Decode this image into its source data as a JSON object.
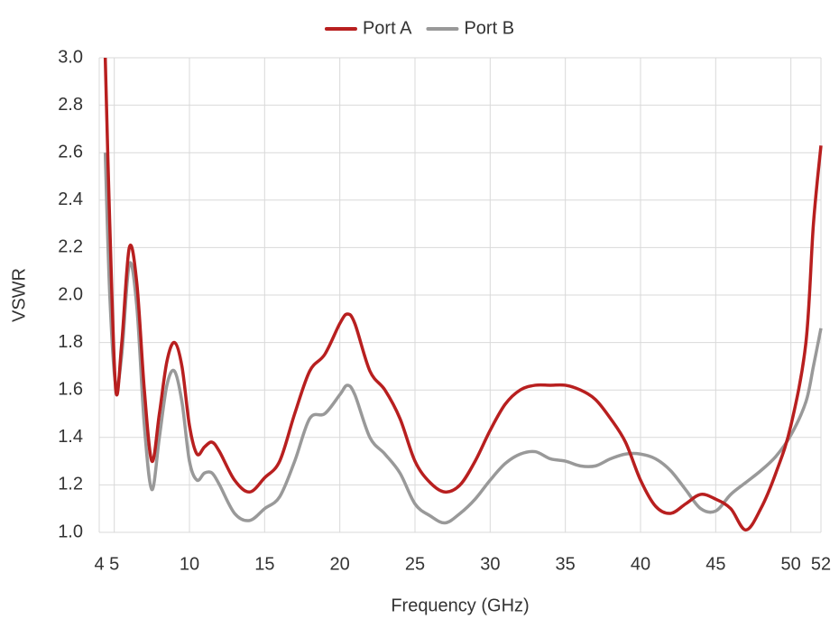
{
  "chart_data": {
    "type": "line",
    "x_label": "Frequency (GHz)",
    "y_label": "VSWR",
    "x": [
      4.4,
      4.7,
      5.1,
      5.5,
      6.0,
      6.5,
      7.0,
      7.5,
      8.0,
      8.5,
      9.0,
      9.5,
      10,
      10.5,
      11,
      11.5,
      12,
      13,
      14,
      15,
      16,
      17,
      18,
      19,
      20,
      20.5,
      21,
      22,
      23,
      24,
      25,
      26,
      27,
      28,
      29,
      30,
      31,
      32,
      33,
      34,
      35,
      36,
      37,
      38,
      39,
      40,
      41,
      42,
      43,
      44,
      45,
      46,
      47,
      48,
      49,
      50,
      51,
      51.5,
      52
    ],
    "series": [
      {
        "name": "Port A",
        "color": "#b81f1f",
        "values": [
          3.0,
          2.3,
          1.6,
          1.8,
          2.2,
          2.05,
          1.6,
          1.3,
          1.5,
          1.72,
          1.8,
          1.7,
          1.45,
          1.33,
          1.36,
          1.38,
          1.34,
          1.22,
          1.17,
          1.23,
          1.3,
          1.5,
          1.68,
          1.75,
          1.88,
          1.92,
          1.88,
          1.68,
          1.6,
          1.48,
          1.3,
          1.21,
          1.17,
          1.2,
          1.3,
          1.43,
          1.54,
          1.6,
          1.62,
          1.62,
          1.62,
          1.6,
          1.56,
          1.48,
          1.38,
          1.22,
          1.11,
          1.08,
          1.12,
          1.16,
          1.14,
          1.1,
          1.01,
          1.1,
          1.25,
          1.45,
          1.8,
          2.3,
          2.63
        ]
      },
      {
        "name": "Port B",
        "color": "#999999",
        "values": [
          2.6,
          2.0,
          1.62,
          1.75,
          2.13,
          1.95,
          1.45,
          1.18,
          1.4,
          1.62,
          1.68,
          1.55,
          1.3,
          1.22,
          1.25,
          1.25,
          1.2,
          1.08,
          1.05,
          1.1,
          1.15,
          1.3,
          1.48,
          1.5,
          1.58,
          1.62,
          1.58,
          1.4,
          1.33,
          1.25,
          1.12,
          1.07,
          1.04,
          1.08,
          1.14,
          1.22,
          1.29,
          1.33,
          1.34,
          1.31,
          1.3,
          1.28,
          1.28,
          1.31,
          1.33,
          1.33,
          1.31,
          1.26,
          1.18,
          1.1,
          1.09,
          1.16,
          1.21,
          1.26,
          1.32,
          1.41,
          1.55,
          1.7,
          1.86
        ]
      }
    ],
    "xlim": [
      4,
      52
    ],
    "xticks": [
      4,
      5,
      10,
      15,
      20,
      25,
      30,
      35,
      40,
      45,
      50,
      52
    ],
    "ylim": [
      1,
      3
    ],
    "yticks": [
      {
        "value": 1,
        "label": "1.0"
      },
      1.2,
      1.4,
      1.6,
      1.8,
      {
        "value": 2,
        "label": "2.0"
      },
      2.2,
      2.4,
      2.6,
      2.8,
      {
        "value": 3,
        "label": "3.0"
      }
    ],
    "grid": true,
    "legend": "top"
  }
}
